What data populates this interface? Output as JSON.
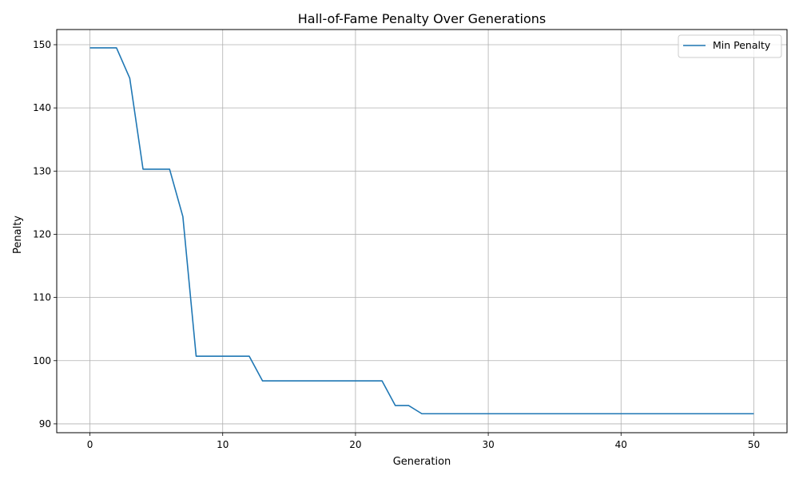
{
  "chart_data": {
    "type": "line",
    "title": "Hall-of-Fame Penalty Over Generations",
    "xlabel": "Generation",
    "ylabel": "Penalty",
    "xlim": [
      -2.5,
      52.5
    ],
    "ylim": [
      88.6,
      152.4
    ],
    "xticks": [
      0,
      10,
      20,
      30,
      40,
      50
    ],
    "yticks": [
      90,
      100,
      110,
      120,
      130,
      140,
      150
    ],
    "grid": true,
    "legend_position": "top-right",
    "series": [
      {
        "name": "Min Penalty",
        "color": "#1f77b4",
        "x": [
          0,
          1,
          2,
          3,
          4,
          5,
          6,
          7,
          8,
          9,
          10,
          11,
          12,
          13,
          14,
          15,
          16,
          17,
          18,
          19,
          20,
          21,
          22,
          23,
          24,
          25,
          26,
          27,
          28,
          29,
          30,
          31,
          32,
          33,
          34,
          35,
          36,
          37,
          38,
          39,
          40,
          41,
          42,
          43,
          44,
          45,
          46,
          47,
          48,
          49,
          50
        ],
        "y": [
          149.5,
          149.5,
          149.5,
          144.7,
          130.3,
          130.3,
          130.3,
          122.8,
          100.7,
          100.7,
          100.7,
          100.7,
          100.7,
          96.8,
          96.8,
          96.8,
          96.8,
          96.8,
          96.8,
          96.8,
          96.8,
          96.8,
          96.8,
          92.9,
          92.9,
          91.6,
          91.6,
          91.6,
          91.6,
          91.6,
          91.6,
          91.6,
          91.6,
          91.6,
          91.6,
          91.6,
          91.6,
          91.6,
          91.6,
          91.6,
          91.6,
          91.6,
          91.6,
          91.6,
          91.6,
          91.6,
          91.6,
          91.6,
          91.6,
          91.6,
          91.6
        ]
      }
    ]
  }
}
